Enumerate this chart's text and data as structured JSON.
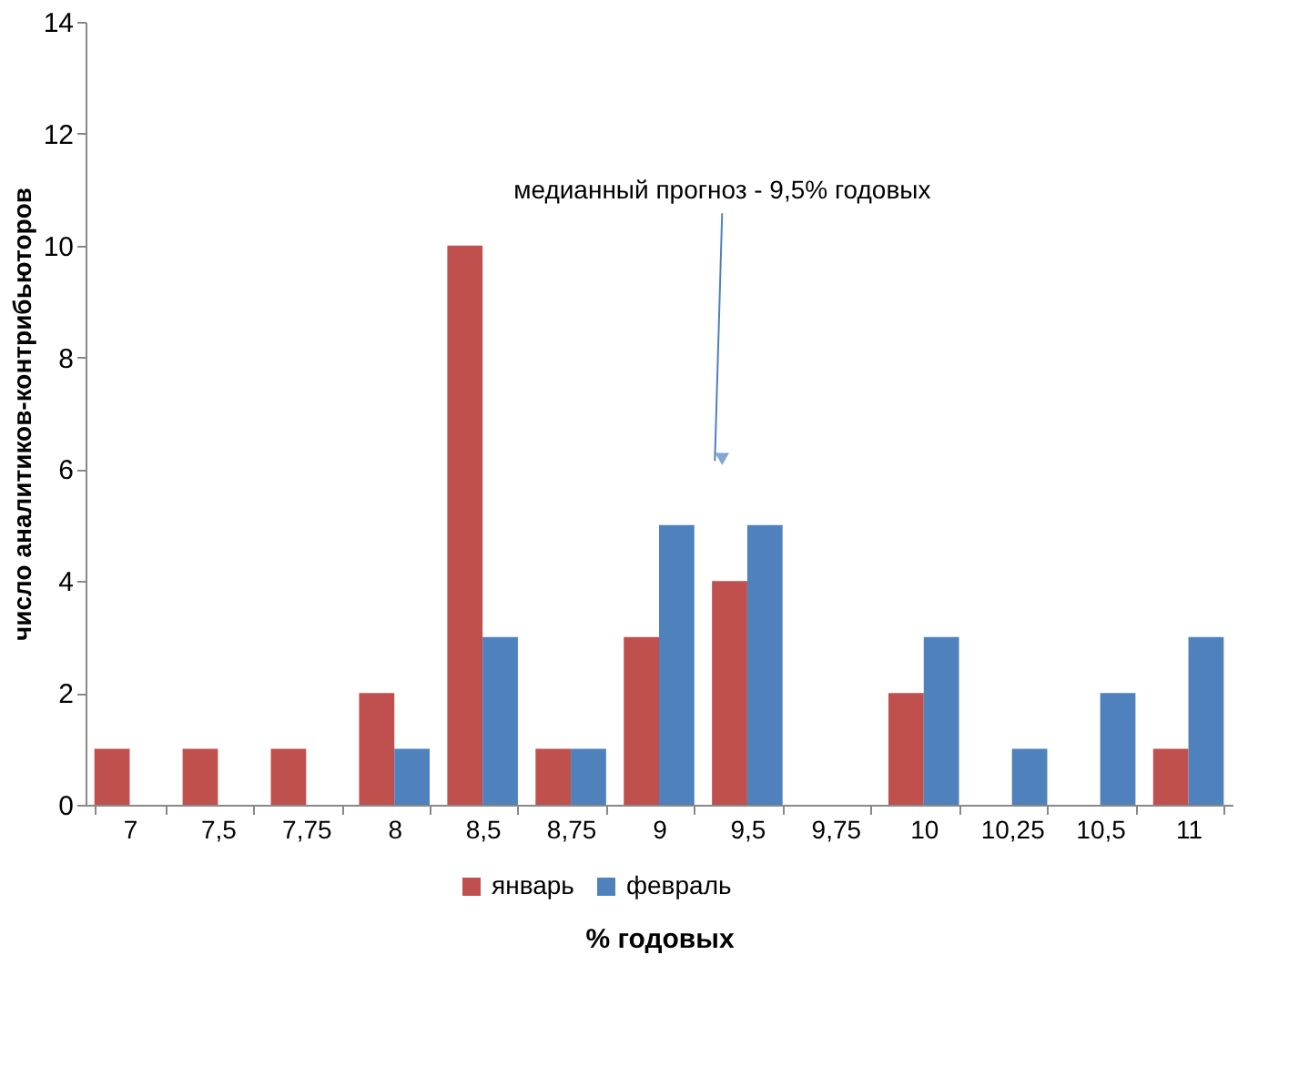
{
  "chart_data": {
    "type": "bar",
    "xlabel": "% годовых",
    "ylabel": "число аналитиков-контрибьюторов",
    "categories": [
      "7",
      "7,5",
      "7,75",
      "8",
      "8,5",
      "8,75",
      "9",
      "9,5",
      "9,75",
      "10",
      "10,25",
      "10,5",
      "11"
    ],
    "series": [
      {
        "name": "январь",
        "color": "#c0504d",
        "values": [
          1,
          1,
          1,
          2,
          10,
          1,
          3,
          4,
          0,
          2,
          0,
          0,
          1
        ]
      },
      {
        "name": "февраль",
        "color": "#4f81bd",
        "values": [
          0,
          0,
          0,
          1,
          3,
          1,
          5,
          5,
          0,
          3,
          1,
          2,
          3
        ]
      }
    ],
    "ylim": [
      0,
      14
    ],
    "yticks": [
      0,
      2,
      4,
      6,
      8,
      10,
      12,
      14
    ],
    "grid": false,
    "legend": "bottom",
    "annotations": [
      "медианный прогноз - 9,5% годовых"
    ]
  }
}
